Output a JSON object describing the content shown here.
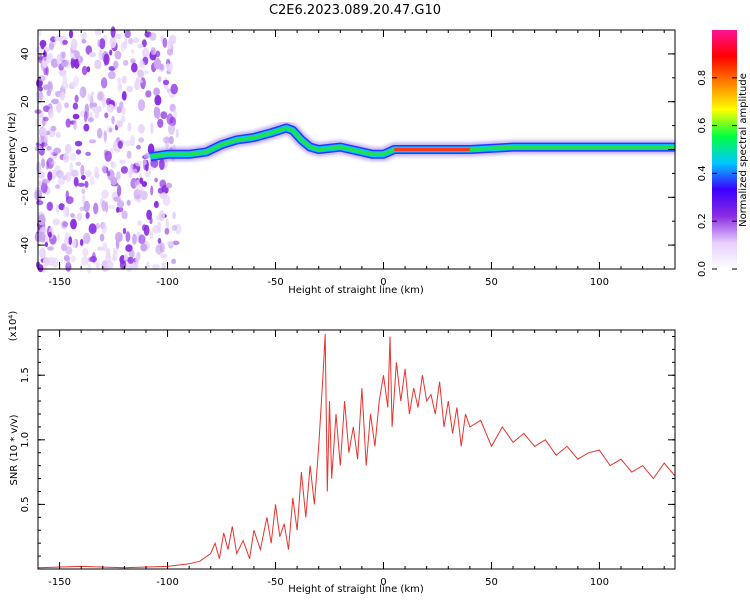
{
  "title": "C2E6.2023.089.20.47.G10",
  "chart_data": [
    {
      "type": "heatmap",
      "xlabel": "Height of straight line (km)",
      "ylabel": "Frequency (Hz)",
      "xlim": [
        -160,
        135
      ],
      "ylim": [
        -50,
        50
      ],
      "xticks": [
        -150,
        -100,
        -50,
        0,
        50,
        100
      ],
      "yticks": [
        -40,
        -20,
        0,
        20,
        40
      ],
      "trace": {
        "x": [
          -108,
          -100,
          -90,
          -82,
          -75,
          -68,
          -60,
          -52,
          -45,
          -42,
          -38,
          -34,
          -30,
          -20,
          -10,
          -5,
          0,
          5,
          10,
          20,
          40,
          60,
          80,
          100,
          120,
          135
        ],
        "freq": [
          -3,
          -2,
          -2,
          -1,
          2,
          4,
          5,
          7,
          9,
          8,
          4,
          1,
          0,
          1,
          -1,
          -2,
          -2,
          0,
          0,
          0,
          0,
          1,
          1,
          1,
          1,
          1
        ]
      },
      "noise_region_x": [
        -160,
        -95
      ],
      "colorbar": {
        "label": "Normalized spectral amplitude",
        "ticks": [
          0.0,
          0.2,
          0.4,
          0.6,
          0.8
        ],
        "range": [
          0,
          1
        ],
        "colors": [
          "#ffffff",
          "#e6ccff",
          "#8a2be2",
          "#3a00ff",
          "#00c8ff",
          "#00ff40",
          "#ffff00",
          "#ff8000",
          "#ff0000",
          "#ff1493"
        ]
      }
    },
    {
      "type": "line",
      "xlabel": "Height of straight line (km)",
      "ylabel": "SNR (10 * v/v)",
      "yscale_label": "(x10⁴)",
      "xlim": [
        -160,
        135
      ],
      "ylim": [
        0,
        1.85
      ],
      "xticks": [
        -150,
        -100,
        -50,
        0,
        50,
        100
      ],
      "yticks": [
        0.5,
        1.0,
        1.5
      ],
      "ytick_labels": [
        "0.5",
        "1.0",
        "1.5"
      ],
      "color": "#e8332f",
      "series": [
        {
          "x": [
            -160,
            -140,
            -120,
            -100,
            -90,
            -85,
            -80,
            -78,
            -76,
            -74,
            -72,
            -70,
            -68,
            -65,
            -62,
            -60,
            -57,
            -54,
            -52,
            -50,
            -48,
            -46,
            -44,
            -42,
            -40,
            -38,
            -36,
            -34,
            -32,
            -30,
            -28,
            -27,
            -26,
            -25,
            -24,
            -22,
            -20,
            -18,
            -16,
            -14,
            -12,
            -10,
            -8,
            -6,
            -4,
            -2,
            0,
            2,
            3,
            4,
            6,
            8,
            10,
            12,
            14,
            16,
            18,
            20,
            22,
            24,
            26,
            28,
            30,
            32,
            34,
            36,
            38,
            40,
            45,
            50,
            55,
            60,
            65,
            70,
            75,
            80,
            85,
            90,
            95,
            100,
            105,
            110,
            115,
            120,
            125,
            130,
            135
          ],
          "values": [
            0.01,
            0.02,
            0.01,
            0.02,
            0.04,
            0.06,
            0.12,
            0.2,
            0.08,
            0.28,
            0.15,
            0.33,
            0.12,
            0.22,
            0.08,
            0.3,
            0.15,
            0.4,
            0.2,
            0.5,
            0.25,
            0.35,
            0.15,
            0.55,
            0.3,
            0.75,
            0.4,
            0.8,
            0.5,
            0.95,
            1.5,
            1.82,
            0.6,
            1.3,
            0.7,
            1.2,
            0.8,
            1.3,
            0.9,
            1.1,
            0.85,
            1.4,
            0.8,
            1.2,
            0.95,
            1.3,
            1.5,
            1.25,
            1.8,
            1.1,
            1.6,
            1.3,
            1.55,
            1.2,
            1.4,
            1.25,
            1.5,
            1.3,
            1.35,
            1.2,
            1.45,
            1.1,
            1.3,
            1.05,
            1.25,
            0.95,
            1.2,
            1.1,
            1.15,
            0.95,
            1.1,
            0.98,
            1.05,
            0.95,
            1.0,
            0.88,
            0.95,
            0.85,
            0.9,
            0.92,
            0.8,
            0.85,
            0.75,
            0.8,
            0.7,
            0.82,
            0.72
          ]
        }
      ]
    }
  ]
}
